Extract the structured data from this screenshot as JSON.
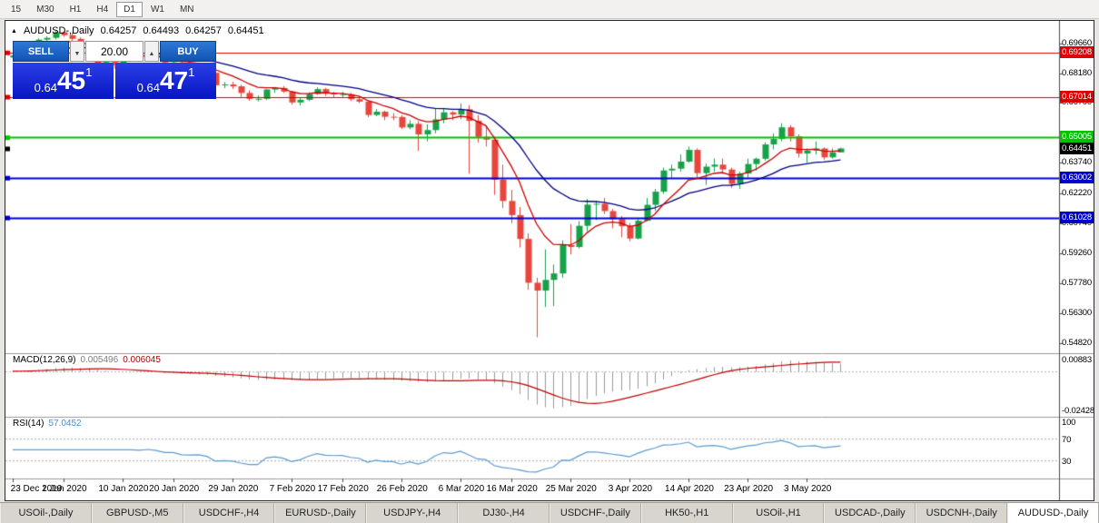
{
  "icons": {
    "triangle_up": "▲",
    "chevron_up": "▲",
    "chevron_down": "▼"
  },
  "colors": {
    "up": "#17a24a",
    "down": "#e8463c",
    "macd_hist": "#9a9a9a",
    "macd_signal": "#c00000",
    "rsi": "#5b9bd5"
  },
  "toolbar": {
    "timeframes": [
      {
        "label": "15",
        "active": false
      },
      {
        "label": "M30",
        "active": false
      },
      {
        "label": "H1",
        "active": false
      },
      {
        "label": "H4",
        "active": false
      },
      {
        "label": "D1",
        "active": true
      },
      {
        "label": "W1",
        "active": false
      },
      {
        "label": "MN",
        "active": false
      }
    ]
  },
  "chart": {
    "title": {
      "symbol": "AUDUSD-,Daily",
      "open": "0.64257",
      "high": "0.64493",
      "low": "0.64257",
      "close": "0.64451"
    },
    "trade_panel": {
      "sell_label": "SELL",
      "buy_label": "BUY",
      "volume": "20.00",
      "bid_prefix": "0.64",
      "bid_big": "45",
      "bid_sup": "1",
      "ask_prefix": "0.64",
      "ask_big": "47",
      "ask_sup": "1"
    },
    "price_axis_labels": [
      "0.69660",
      "0.68180",
      "0.66700",
      "0.63740",
      "0.62220",
      "0.60740",
      "0.59260",
      "0.57780",
      "0.56300",
      "0.54820"
    ],
    "levels": [
      {
        "price": 0.69208,
        "label": "0.69208",
        "color": "#dd0000",
        "width": 1
      },
      {
        "price": 0.67014,
        "label": "0.67014",
        "color": "#dd0000",
        "width": 1
      },
      {
        "price": 0.65005,
        "label": "0.65005",
        "color": "#00c300",
        "width": 2
      },
      {
        "price": 0.63002,
        "label": "0.63002",
        "color": "#0000cd",
        "width": 2
      },
      {
        "price": 0.61028,
        "label": "0.61028",
        "color": "#0000cd",
        "width": 2
      }
    ],
    "current_price": {
      "price": 0.64451,
      "label": "0.64451",
      "color": "#000000"
    },
    "date_labels": [
      {
        "label": "23 Dec 2019",
        "index": 0
      },
      {
        "label": "1 Jan 2020",
        "index": 6
      },
      {
        "label": "10 Jan 2020",
        "index": 13
      },
      {
        "label": "20 Jan 2020",
        "index": 19
      },
      {
        "label": "29 Jan 2020",
        "index": 26
      },
      {
        "label": "7 Feb 2020",
        "index": 33
      },
      {
        "label": "17 Feb 2020",
        "index": 39
      },
      {
        "label": "26 Feb 2020",
        "index": 46
      },
      {
        "label": "6 Mar 2020",
        "index": 53
      },
      {
        "label": "16 Mar 2020",
        "index": 59
      },
      {
        "label": "25 Mar 2020",
        "index": 66
      },
      {
        "label": "3 Apr 2020",
        "index": 73
      },
      {
        "label": "14 Apr 2020",
        "index": 80
      },
      {
        "label": "23 Apr 2020",
        "index": 87
      },
      {
        "label": "3 May 2020",
        "index": 94
      }
    ]
  },
  "chart_data": {
    "type": "candlestick",
    "title": "AUDUSD-,Daily",
    "ylim": [
      0.544,
      0.705
    ],
    "candles": [
      [
        0.6895,
        0.6912,
        0.689,
        0.6906
      ],
      [
        0.6906,
        0.693,
        0.69,
        0.6924
      ],
      [
        0.6924,
        0.694,
        0.6918,
        0.6936
      ],
      [
        0.6936,
        0.699,
        0.693,
        0.6984
      ],
      [
        0.6984,
        0.7,
        0.6975,
        0.6993
      ],
      [
        0.6993,
        0.703,
        0.6985,
        0.7021
      ],
      [
        0.7021,
        0.7025,
        0.6998,
        0.7006
      ],
      [
        0.7006,
        0.702,
        0.698,
        0.6988
      ],
      [
        0.6988,
        0.6995,
        0.693,
        0.6947
      ],
      [
        0.6947,
        0.696,
        0.6925,
        0.6938
      ],
      [
        0.6938,
        0.6945,
        0.685,
        0.6865
      ],
      [
        0.6865,
        0.689,
        0.685,
        0.6874
      ],
      [
        0.6874,
        0.688,
        0.684,
        0.6857
      ],
      [
        0.6857,
        0.691,
        0.6855,
        0.69
      ],
      [
        0.69,
        0.692,
        0.689,
        0.6902
      ],
      [
        0.6902,
        0.6915,
        0.6885,
        0.6896
      ],
      [
        0.6896,
        0.692,
        0.689,
        0.6905
      ],
      [
        0.6905,
        0.6925,
        0.6885,
        0.6895
      ],
      [
        0.6895,
        0.69,
        0.686,
        0.6871
      ],
      [
        0.6871,
        0.6885,
        0.686,
        0.6872
      ],
      [
        0.6872,
        0.6878,
        0.6836,
        0.6846
      ],
      [
        0.6846,
        0.688,
        0.684,
        0.6843
      ],
      [
        0.6843,
        0.685,
        0.6808,
        0.6845
      ],
      [
        0.6845,
        0.6855,
        0.682,
        0.6827
      ],
      [
        0.682,
        0.6828,
        0.675,
        0.6758
      ],
      [
        0.6758,
        0.6774,
        0.6744,
        0.6762
      ],
      [
        0.6762,
        0.6775,
        0.674,
        0.6753
      ],
      [
        0.6753,
        0.676,
        0.67,
        0.672
      ],
      [
        0.672,
        0.6733,
        0.6682,
        0.6691
      ],
      [
        0.6691,
        0.6708,
        0.6678,
        0.6691
      ],
      [
        0.6691,
        0.674,
        0.6685,
        0.6737
      ],
      [
        0.6737,
        0.675,
        0.672,
        0.6745
      ],
      [
        0.6745,
        0.6755,
        0.672,
        0.6727
      ],
      [
        0.6727,
        0.673,
        0.6662,
        0.6673
      ],
      [
        0.6673,
        0.6695,
        0.6658,
        0.6686
      ],
      [
        0.6686,
        0.6723,
        0.668,
        0.6715
      ],
      [
        0.6715,
        0.6748,
        0.671,
        0.6739
      ],
      [
        0.6739,
        0.6745,
        0.6705,
        0.6717
      ],
      [
        0.6717,
        0.6725,
        0.67,
        0.6713
      ],
      [
        0.6713,
        0.6725,
        0.67,
        0.6714
      ],
      [
        0.6714,
        0.672,
        0.668,
        0.6689
      ],
      [
        0.6689,
        0.67,
        0.667,
        0.6677
      ],
      [
        0.6677,
        0.668,
        0.66,
        0.6611
      ],
      [
        0.6611,
        0.664,
        0.6605,
        0.6627
      ],
      [
        0.6627,
        0.6632,
        0.6585,
        0.6602
      ],
      [
        0.6602,
        0.662,
        0.6585,
        0.6601
      ],
      [
        0.6601,
        0.661,
        0.6542,
        0.6549
      ],
      [
        0.6549,
        0.6585,
        0.654,
        0.6567
      ],
      [
        0.6567,
        0.658,
        0.6433,
        0.6515
      ],
      [
        0.6515,
        0.6565,
        0.648,
        0.6536
      ],
      [
        0.6536,
        0.6645,
        0.652,
        0.6589
      ],
      [
        0.6589,
        0.664,
        0.657,
        0.6624
      ],
      [
        0.6624,
        0.663,
        0.6585,
        0.6613
      ],
      [
        0.6613,
        0.6668,
        0.659,
        0.6639
      ],
      [
        0.6639,
        0.666,
        0.632,
        0.6582
      ],
      [
        0.6582,
        0.661,
        0.6475,
        0.6503
      ],
      [
        0.6503,
        0.656,
        0.6455,
        0.6489
      ],
      [
        0.6489,
        0.649,
        0.6215,
        0.629
      ],
      [
        0.629,
        0.6365,
        0.615,
        0.6185
      ],
      [
        0.6185,
        0.624,
        0.6075,
        0.6115
      ],
      [
        0.6115,
        0.6155,
        0.5955,
        0.5997
      ],
      [
        0.5997,
        0.6025,
        0.5745,
        0.578
      ],
      [
        0.578,
        0.5805,
        0.551,
        0.5741
      ],
      [
        0.5741,
        0.5945,
        0.566,
        0.5794
      ],
      [
        0.5794,
        0.587,
        0.5665,
        0.5826
      ],
      [
        0.5826,
        0.599,
        0.5805,
        0.5966
      ],
      [
        0.5966,
        0.607,
        0.592,
        0.5957
      ],
      [
        0.5957,
        0.6085,
        0.595,
        0.6062
      ],
      [
        0.6062,
        0.6195,
        0.6035,
        0.6167
      ],
      [
        0.6167,
        0.6185,
        0.609,
        0.6171
      ],
      [
        0.6171,
        0.62,
        0.612,
        0.6135
      ],
      [
        0.6135,
        0.6145,
        0.605,
        0.6095
      ],
      [
        0.6095,
        0.611,
        0.6005,
        0.606
      ],
      [
        0.606,
        0.6075,
        0.5985,
        0.5999
      ],
      [
        0.5999,
        0.6095,
        0.5995,
        0.6087
      ],
      [
        0.6087,
        0.62,
        0.6085,
        0.6166
      ],
      [
        0.6166,
        0.6245,
        0.6135,
        0.6231
      ],
      [
        0.6231,
        0.635,
        0.622,
        0.6336
      ],
      [
        0.6336,
        0.6365,
        0.63,
        0.6345
      ],
      [
        0.6345,
        0.6415,
        0.633,
        0.638
      ],
      [
        0.638,
        0.6455,
        0.6375,
        0.6438
      ],
      [
        0.6438,
        0.6445,
        0.63,
        0.6323
      ],
      [
        0.6323,
        0.637,
        0.6265,
        0.6355
      ],
      [
        0.6355,
        0.6395,
        0.633,
        0.6365
      ],
      [
        0.6365,
        0.6395,
        0.632,
        0.6341
      ],
      [
        0.6341,
        0.635,
        0.625,
        0.627
      ],
      [
        0.627,
        0.633,
        0.6245,
        0.6321
      ],
      [
        0.6321,
        0.6395,
        0.63,
        0.6368
      ],
      [
        0.6368,
        0.64,
        0.6335,
        0.6394
      ],
      [
        0.6394,
        0.6475,
        0.6385,
        0.6465
      ],
      [
        0.6465,
        0.652,
        0.644,
        0.6492
      ],
      [
        0.6492,
        0.657,
        0.648,
        0.655
      ],
      [
        0.655,
        0.656,
        0.648,
        0.6505
      ],
      [
        0.6505,
        0.6515,
        0.64,
        0.642
      ],
      [
        0.642,
        0.6445,
        0.6375,
        0.6435
      ],
      [
        0.6435,
        0.648,
        0.6415,
        0.6445
      ],
      [
        0.6445,
        0.645,
        0.639,
        0.6401
      ],
      [
        0.6401,
        0.6445,
        0.6395,
        0.6426
      ],
      [
        0.64257,
        0.64493,
        0.64257,
        0.64451
      ]
    ],
    "indicators": {
      "ma_lines": [
        {
          "period": 8,
          "color": "#cc0000"
        },
        {
          "period": 21,
          "color": "#000080"
        }
      ],
      "macd": {
        "label": "MACD(12,26,9)",
        "value_main": "0.005496",
        "value_signal": "0.006045",
        "axis_labels": [
          "0.00883",
          "-0.02428"
        ],
        "range": [
          -0.0265,
          0.0095
        ]
      },
      "rsi": {
        "label": "RSI(14)",
        "value": "57.0452",
        "levels": [
          70,
          30
        ],
        "axis_labels": [
          "100",
          "70",
          "30"
        ],
        "range": [
          0,
          100
        ]
      }
    }
  },
  "tabs": [
    {
      "label": "USOil-,Daily",
      "active": false
    },
    {
      "label": "GBPUSD-,M5",
      "active": false
    },
    {
      "label": "USDCHF-,H4",
      "active": false
    },
    {
      "label": "EURUSD-,Daily",
      "active": false
    },
    {
      "label": "USDJPY-,H4",
      "active": false
    },
    {
      "label": "DJ30-,H4",
      "active": false
    },
    {
      "label": "USDCHF-,Daily",
      "active": false
    },
    {
      "label": "HK50-,H1",
      "active": false
    },
    {
      "label": "USOil-,H1",
      "active": false
    },
    {
      "label": "USDCAD-,Daily",
      "active": false
    },
    {
      "label": "USDCNH-,Daily",
      "active": false
    },
    {
      "label": "AUDUSD-,Daily",
      "active": true
    }
  ]
}
